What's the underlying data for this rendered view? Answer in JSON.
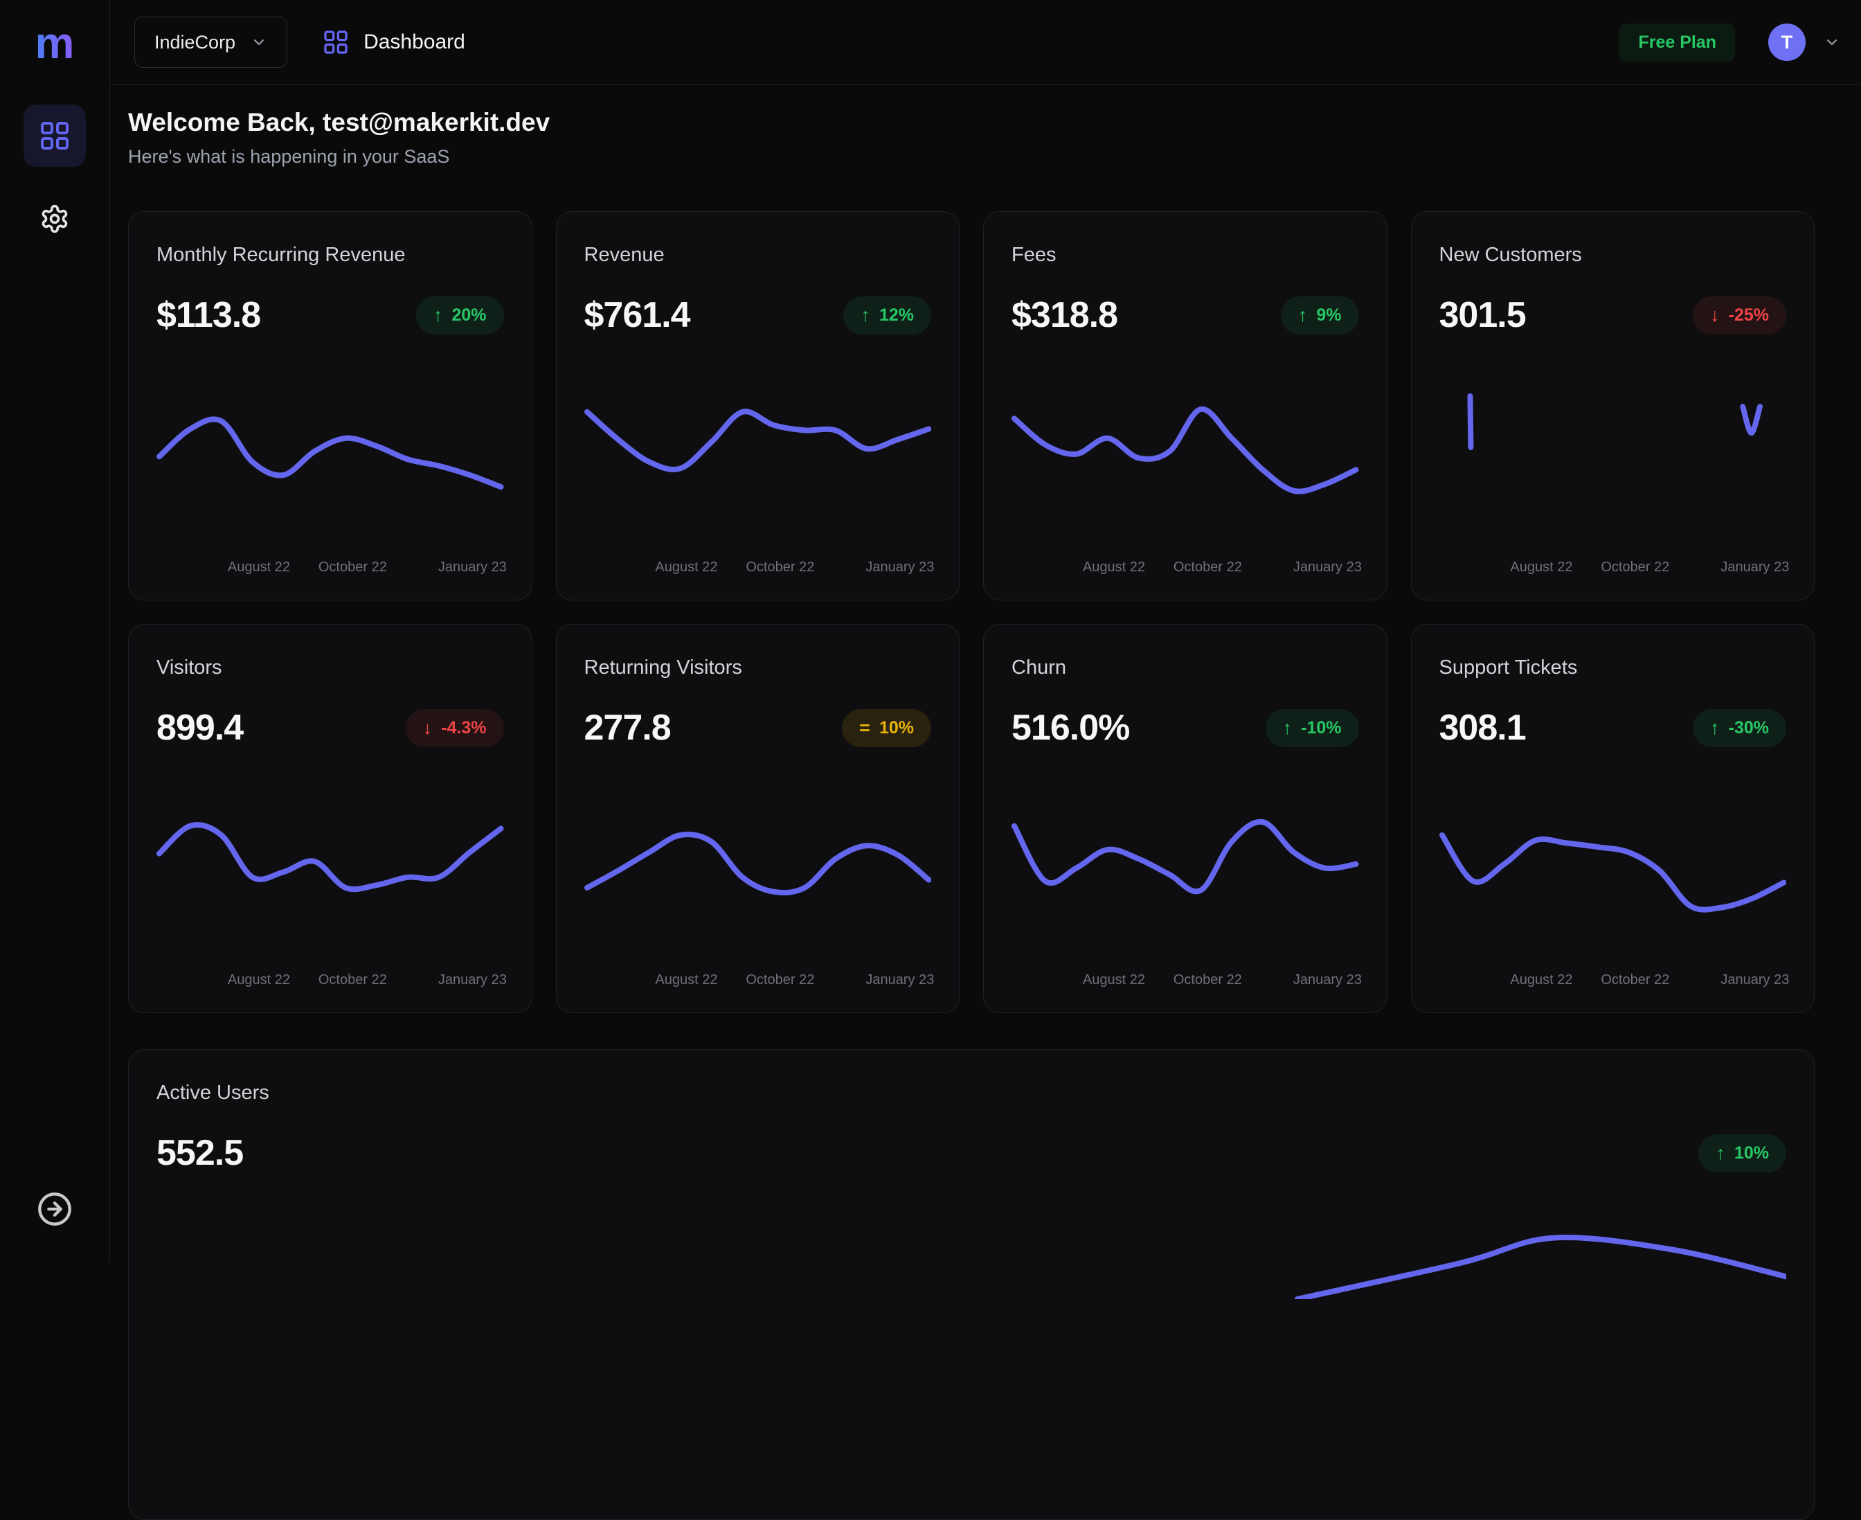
{
  "app": {
    "logo_text": "m",
    "sidebar": {
      "nav": [
        {
          "icon": "grid-icon",
          "active": true
        },
        {
          "icon": "gear-icon",
          "active": false
        }
      ],
      "footer_icon": "arrow-right-circle-icon"
    },
    "topbar": {
      "team_selector": {
        "label": "IndieCorp",
        "icon": "chevron-down-icon"
      },
      "page": {
        "icon": "grid-icon",
        "label": "Dashboard"
      },
      "plan_badge": "Free Plan",
      "avatar_initial": "T",
      "avatar_menu_icon": "chevron-down-icon"
    },
    "header": {
      "title": "Welcome Back, test@makerkit.dev",
      "subtitle": "Here's what is happening in your SaaS"
    }
  },
  "colors": {
    "page_bg": "#0a0a0a",
    "card_bg": "#0e0e10",
    "border": "#202125",
    "chart_line": "#6467ee",
    "accent_indigo": "#6366f1",
    "positive_green": "#27c765",
    "negative_red": "#ef4444",
    "neutral_amber": "#eab308"
  },
  "x_axis_labels": [
    "August 22",
    "October 22",
    "January 23"
  ],
  "cards": [
    {
      "id": "mrr",
      "title": "Monthly Recurring Revenue",
      "value": "$113.8",
      "trend": {
        "icon": "arrow-up-icon",
        "label": "20%",
        "tone": "green"
      }
    },
    {
      "id": "revenue",
      "title": "Revenue",
      "value": "$761.4",
      "trend": {
        "icon": "arrow-up-icon",
        "label": "12%",
        "tone": "green"
      }
    },
    {
      "id": "fees",
      "title": "Fees",
      "value": "$318.8",
      "trend": {
        "icon": "arrow-up-icon",
        "label": "9%",
        "tone": "green"
      }
    },
    {
      "id": "new-customers",
      "title": "New Customers",
      "value": "301.5",
      "trend": {
        "icon": "arrow-down-icon",
        "label": "-25%",
        "tone": "red"
      }
    },
    {
      "id": "visitors",
      "title": "Visitors",
      "value": "899.4",
      "trend": {
        "icon": "arrow-down-icon",
        "label": "-4.3%",
        "tone": "red"
      }
    },
    {
      "id": "returning-visitors",
      "title": "Returning Visitors",
      "value": "277.8",
      "trend": {
        "icon": "equals-icon",
        "label": "10%",
        "tone": "amber"
      }
    },
    {
      "id": "churn",
      "title": "Churn",
      "value": "516.0%",
      "trend": {
        "icon": "arrow-up-icon",
        "label": "-10%",
        "tone": "green"
      }
    },
    {
      "id": "support-tickets",
      "title": "Support Tickets",
      "value": "308.1",
      "trend": {
        "icon": "arrow-up-icon",
        "label": "-30%",
        "tone": "green"
      }
    }
  ],
  "active_card": {
    "id": "active-users",
    "title": "Active Users",
    "value": "552.5",
    "trend": {
      "icon": "arrow-up-icon",
      "label": "10%",
      "tone": "green"
    }
  },
  "chart_data": [
    {
      "title": "Monthly Recurring Revenue",
      "type": "line",
      "x_axis_labels": [
        "August 22",
        "October 22",
        "January 23"
      ],
      "y_axis": "not shown (sparkline, relative units 0-100)",
      "values": [
        54,
        75,
        81,
        50,
        40,
        58,
        68,
        62,
        52,
        47,
        40,
        31
      ]
    },
    {
      "title": "Revenue",
      "type": "line",
      "x_axis_labels": [
        "August 22",
        "October 22",
        "January 23"
      ],
      "y_axis": "not shown (sparkline, relative units 0-100)",
      "values": [
        88,
        67,
        50,
        45,
        65,
        88,
        78,
        74,
        74,
        60,
        67,
        75
      ]
    },
    {
      "title": "Fees",
      "type": "line",
      "x_axis_labels": [
        "August 22",
        "October 22",
        "January 23"
      ],
      "y_axis": "not shown (sparkline, relative units 0-100)",
      "values": [
        83,
        63,
        56,
        68,
        53,
        58,
        90,
        68,
        44,
        28,
        33,
        44
      ]
    },
    {
      "title": "New Customers",
      "type": "line",
      "x_axis_labels": [
        "August 22",
        "October 22",
        "January 23"
      ],
      "y_axis": "not shown (sparkline, relative units 0-100)",
      "note": "sparse series rendered as two disconnected segments: a vertical spike at far left and a small dip near January",
      "segments": [
        {
          "x": [
            0.082,
            0.084
          ],
          "values": [
            100,
            61
          ]
        },
        {
          "x": [
            0.88,
            0.905,
            0.93
          ],
          "values": [
            92,
            72,
            92
          ]
        }
      ]
    },
    {
      "title": "Visitors",
      "type": "line",
      "x_axis_labels": [
        "August 22",
        "October 22",
        "January 23"
      ],
      "y_axis": "not shown (sparkline, relative units 0-100)",
      "values": [
        66,
        87,
        80,
        48,
        52,
        60,
        40,
        42,
        48,
        48,
        67,
        85
      ]
    },
    {
      "title": "Returning Visitors",
      "type": "line",
      "x_axis_labels": [
        "August 22",
        "October 22",
        "January 23"
      ],
      "y_axis": "not shown (sparkline, relative units 0-100)",
      "values": [
        40,
        53,
        67,
        80,
        75,
        48,
        37,
        40,
        62,
        72,
        65,
        46
      ]
    },
    {
      "title": "Churn",
      "type": "line",
      "x_axis_labels": [
        "August 22",
        "October 22",
        "January 23"
      ],
      "y_axis": "not shown (sparkline, relative units 0-100)",
      "values": [
        87,
        45,
        55,
        69,
        62,
        50,
        38,
        75,
        90,
        67,
        55,
        58
      ]
    },
    {
      "title": "Support Tickets",
      "type": "line",
      "x_axis_labels": [
        "August 22",
        "October 22",
        "January 23"
      ],
      "y_axis": "not shown (sparkline, relative units 0-100)",
      "values": [
        80,
        45,
        58,
        76,
        74,
        71,
        67,
        53,
        26,
        25,
        32,
        44
      ]
    },
    {
      "title": "Active Users",
      "type": "line",
      "y_axis": "not shown (sparkline, relative units 0-100)",
      "note": "chart mostly cut off by viewport bottom; only the top of an arc near the right side is visible",
      "segments": [
        {
          "x": [
            0.7,
            0.8,
            0.857,
            0.93,
            1.0
          ],
          "values": [
            0,
            40,
            68,
            55,
            25
          ]
        }
      ]
    }
  ]
}
